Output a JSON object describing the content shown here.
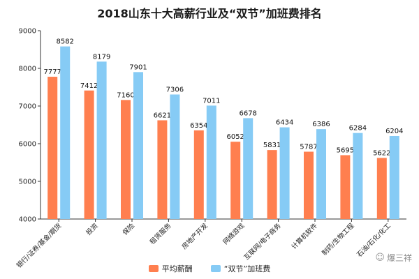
{
  "chart_data": {
    "type": "bar",
    "title": "2018山东十大高薪行业及“双节”加班费排名",
    "categories": [
      "银行/证券/基金/期货",
      "投资",
      "保险",
      "租赁服务",
      "房地产开发",
      "网络游戏",
      "互联网/电子商务",
      "计算机软件",
      "制药/生物工程",
      "石油/石化/化工"
    ],
    "series": [
      {
        "name": "平均薪酬",
        "color": "#ff7f4f",
        "values": [
          7777,
          7412,
          7160,
          6621,
          6354,
          6052,
          5831,
          5787,
          5695,
          5622
        ]
      },
      {
        "name": "“双节”加班费",
        "color": "#86cbf5",
        "values": [
          8582,
          8179,
          7901,
          7306,
          7011,
          6678,
          6434,
          6386,
          6284,
          6204
        ]
      }
    ],
    "ylim": [
      4000,
      9000
    ],
    "yticks": [
      4000,
      5000,
      6000,
      7000,
      8000,
      9000
    ],
    "xlabel": "",
    "ylabel": "",
    "grid": false,
    "legend": "bottom-center"
  },
  "watermark": {
    "text": "爆三祥",
    "icon": "wechat-bubble-icon"
  }
}
